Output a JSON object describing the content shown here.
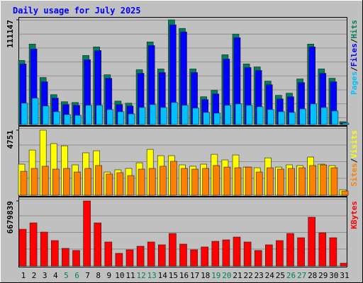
{
  "chart_data": [
    {
      "type": "bar",
      "title": "Daily usage for July 2025",
      "legend_separator": "/",
      "ylim": [
        0,
        111147
      ],
      "yticks": [
        111147
      ],
      "series": [
        {
          "name": "Hits",
          "color": "#00805c",
          "values": [
            68000,
            85400,
            49900,
            31700,
            24200,
            23400,
            73300,
            82400,
            52900,
            24900,
            22700,
            58200,
            87700,
            59000,
            111147,
            102000,
            59000,
            29500,
            36300,
            74100,
            96000,
            64300,
            61200,
            46100,
            31000,
            33300,
            48400,
            85400,
            59000,
            49100,
            3000
          ]
        },
        {
          "name": "Files",
          "color": "#0000ff",
          "values": [
            64300,
            80100,
            45400,
            28000,
            21200,
            20400,
            68800,
            78600,
            49100,
            21200,
            19700,
            54400,
            83900,
            55200,
            105800,
            98300,
            55200,
            26500,
            32500,
            69500,
            92200,
            60500,
            57400,
            42300,
            27200,
            29500,
            44600,
            82400,
            54400,
            45400,
            1500
          ]
        },
        {
          "name": "Pages",
          "color": "#00c0ff",
          "values": [
            22700,
            28000,
            19700,
            13600,
            10600,
            9800,
            20400,
            20400,
            15900,
            13600,
            11300,
            18100,
            21200,
            18100,
            23400,
            20400,
            17400,
            12900,
            12100,
            20400,
            21900,
            20400,
            18900,
            15900,
            13600,
            12900,
            16600,
            21900,
            18100,
            14400,
            1500
          ]
        }
      ]
    },
    {
      "type": "bar",
      "legend_separator": "/",
      "ylim": [
        0,
        4751
      ],
      "yticks": [
        4751
      ],
      "series": [
        {
          "name": "Visits",
          "color": "#ffff00",
          "values": [
            2270,
            3300,
            4751,
            3770,
            3610,
            2220,
            3100,
            3250,
            1700,
            1860,
            1960,
            2370,
            3350,
            2890,
            2890,
            2220,
            2120,
            2270,
            2990,
            2580,
            2940,
            2060,
            2010,
            2730,
            2060,
            2220,
            2170,
            2790,
            2270,
            2170,
            410
          ]
        },
        {
          "name": "Sites",
          "color": "#ff8000",
          "values": [
            1750,
            1960,
            2120,
            1910,
            1960,
            1700,
            1960,
            2170,
            1550,
            1650,
            1440,
            1910,
            1960,
            2120,
            2480,
            1960,
            1910,
            1960,
            2170,
            2060,
            2010,
            2060,
            1700,
            2010,
            1910,
            1960,
            2010,
            2170,
            2220,
            2010,
            310
          ]
        }
      ]
    },
    {
      "type": "bar",
      "ylim": [
        0,
        6679839
      ],
      "yticks": [
        6679839
      ],
      "categories": [
        "1",
        "2",
        "3",
        "4",
        "5",
        "6",
        "7",
        "8",
        "9",
        "10",
        "11",
        "12",
        "13",
        "14",
        "15",
        "16",
        "17",
        "18",
        "19",
        "20",
        "21",
        "22",
        "23",
        "24",
        "25",
        "26",
        "27",
        "28",
        "29",
        "30",
        "31"
      ],
      "category_colors": [
        "#000000",
        "#000000",
        "#000000",
        "#000000",
        "#00805c",
        "#00805c",
        "#000000",
        "#000000",
        "#000000",
        "#000000",
        "#000000",
        "#00805c",
        "#00805c",
        "#000000",
        "#000000",
        "#000000",
        "#000000",
        "#000000",
        "#00805c",
        "#00805c",
        "#000000",
        "#000000",
        "#000000",
        "#000000",
        "#000000",
        "#00805c",
        "#00805c",
        "#000000",
        "#000000",
        "#000000",
        "#000000"
      ],
      "series": [
        {
          "name": "KBytes",
          "color": "#ff0000",
          "values": [
            3775000,
            4429000,
            3485000,
            2614000,
            1815000,
            1597000,
            6679839,
            4429000,
            2469000,
            1307000,
            1670000,
            2033000,
            2469000,
            2178000,
            3340000,
            2251000,
            1670000,
            1960000,
            2541000,
            2686000,
            2977000,
            2469000,
            1597000,
            2178000,
            2614000,
            3340000,
            2904000,
            5010000,
            3412000,
            2904000,
            290000
          ]
        }
      ]
    }
  ]
}
